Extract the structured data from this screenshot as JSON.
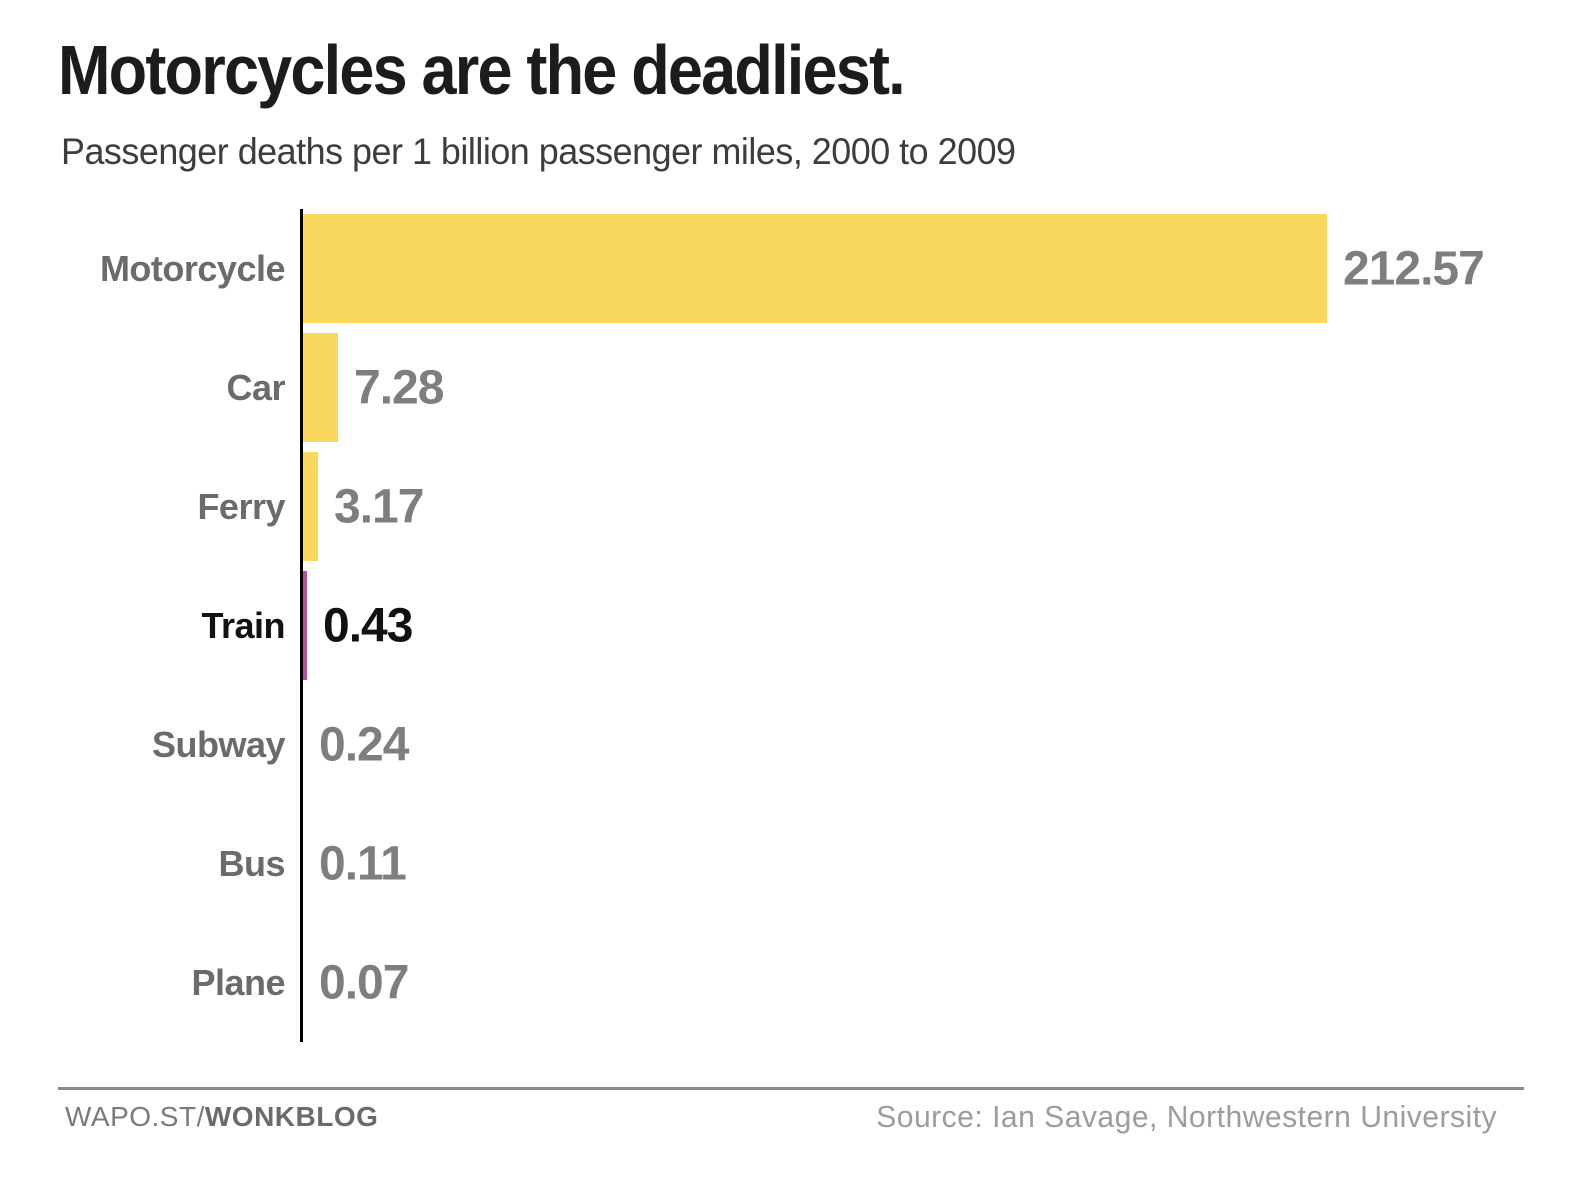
{
  "title": "Motorcycles are the deadliest.",
  "subtitle": "Passenger deaths per 1 billion passenger miles, 2000 to 2009",
  "chart_data": {
    "type": "bar",
    "orientation": "horizontal",
    "categories": [
      "Motorcycle",
      "Car",
      "Ferry",
      "Train",
      "Subway",
      "Bus",
      "Plane"
    ],
    "values": [
      212.57,
      7.28,
      3.17,
      0.43,
      0.24,
      0.11,
      0.07
    ],
    "value_labels": [
      "212.57",
      "7.28",
      "3.17",
      "0.43",
      "0.24",
      "0.11",
      "0.07"
    ],
    "highlight_index": 3,
    "xlim": [
      0,
      212.57
    ],
    "grid": false,
    "legend": false,
    "xlabel": "",
    "ylabel": "",
    "colors": {
      "bar": "#FAD85E",
      "highlight_bar": "#B5519C",
      "axis": "#000000",
      "category_label": "#6B6B6B",
      "value_label": "#7E7E7E",
      "highlight_text": "#111111"
    }
  },
  "footer": {
    "left_regular": "WAPO.ST/",
    "left_bold": "WONKBLOG",
    "source": "Source: Ian Savage, Northwestern University"
  }
}
